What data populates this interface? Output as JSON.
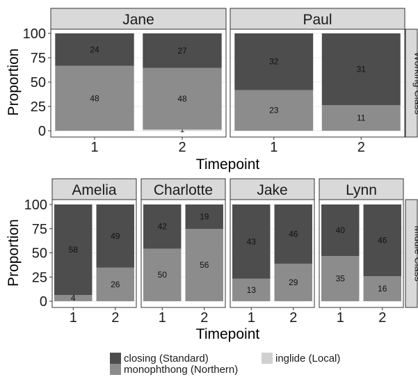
{
  "chart_data": {
    "type": "bar",
    "stacked": true,
    "x_label": "Timepoint",
    "y_label": "Proportion",
    "y_ticks": [
      0,
      25,
      50,
      75,
      100
    ],
    "ylim": [
      0,
      100
    ],
    "x_categories": [
      "1",
      "2"
    ],
    "grid": true,
    "legend_position": "bottom",
    "series": [
      {
        "name": "closing (Standard)",
        "color": "#4d4d4d"
      },
      {
        "name": "monophthong (Northern)",
        "color": "#8c8c8c"
      },
      {
        "name": "inglide (Local)",
        "color": "#d0d0d0"
      }
    ],
    "rows": [
      {
        "label": "Working Class",
        "panels": [
          {
            "speaker": "Jane",
            "bars": [
              {
                "x": "1",
                "monophthong": 48,
                "closing": 24,
                "inglide": 0,
                "labels": {
                  "closing": "24",
                  "monophthong": "48"
                }
              },
              {
                "x": "2",
                "monophthong": 48,
                "closing": 27,
                "inglide": 1,
                "labels": {
                  "closing": "27",
                  "monophthong": "48",
                  "inglide": "1"
                }
              }
            ]
          },
          {
            "speaker": "Paul",
            "bars": [
              {
                "x": "1",
                "monophthong": 23,
                "closing": 32,
                "inglide": 0,
                "labels": {
                  "closing": "32",
                  "monophthong": "23"
                }
              },
              {
                "x": "2",
                "monophthong": 11,
                "closing": 31,
                "inglide": 0,
                "labels": {
                  "closing": "31",
                  "monophthong": "11"
                }
              }
            ]
          }
        ]
      },
      {
        "label": "Middle Class",
        "panels": [
          {
            "speaker": "Amelia",
            "bars": [
              {
                "x": "1",
                "monophthong": 4,
                "closing": 58,
                "inglide": 0,
                "labels": {
                  "closing": "58",
                  "monophthong": "4"
                }
              },
              {
                "x": "2",
                "monophthong": 26,
                "closing": 49,
                "inglide": 0,
                "labels": {
                  "closing": "49",
                  "monophthong": "26"
                }
              }
            ]
          },
          {
            "speaker": "Charlotte",
            "bars": [
              {
                "x": "1",
                "monophthong": 50,
                "closing": 42,
                "inglide": 0,
                "labels": {
                  "closing": "42",
                  "monophthong": "50"
                }
              },
              {
                "x": "2",
                "monophthong": 56,
                "closing": 19,
                "inglide": 0,
                "labels": {
                  "closing": "19",
                  "monophthong": "56"
                }
              }
            ]
          },
          {
            "speaker": "Jake",
            "bars": [
              {
                "x": "1",
                "monophthong": 13,
                "closing": 43,
                "inglide": 0,
                "labels": {
                  "closing": "43",
                  "monophthong": "13"
                }
              },
              {
                "x": "2",
                "monophthong": 29,
                "closing": 46,
                "inglide": 0,
                "labels": {
                  "closing": "46",
                  "monophthong": "29"
                }
              }
            ]
          },
          {
            "speaker": "Lynn",
            "bars": [
              {
                "x": "1",
                "monophthong": 35,
                "closing": 40,
                "inglide": 0,
                "labels": {
                  "closing": "40",
                  "monophthong": "35"
                }
              },
              {
                "x": "2",
                "monophthong": 16,
                "closing": 46,
                "inglide": 0,
                "labels": {
                  "closing": "46",
                  "monophthong": "16"
                }
              }
            ]
          }
        ]
      }
    ]
  }
}
